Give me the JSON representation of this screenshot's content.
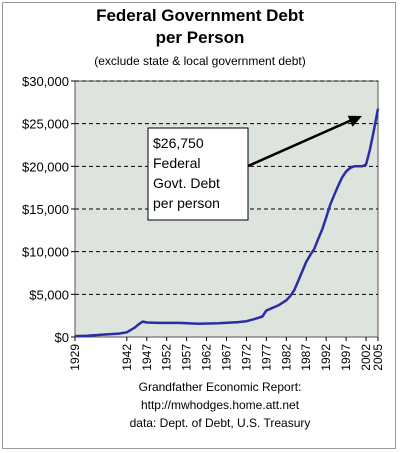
{
  "chart_data": {
    "type": "line",
    "title_lines": [
      "Federal Government Debt",
      "per Person"
    ],
    "subtitle": "(exclude state & local government debt)",
    "ylim": [
      0,
      30000
    ],
    "y_ticks": [
      0,
      5000,
      10000,
      15000,
      20000,
      25000,
      30000
    ],
    "y_tick_labels": [
      "$0",
      "$5,000",
      "$10,000",
      "$15,000",
      "$20,000",
      "$25,000",
      "$30,000"
    ],
    "xlim": [
      1929,
      2005
    ],
    "x_ticks": [
      1929,
      1942,
      1947,
      1952,
      1957,
      1962,
      1967,
      1972,
      1977,
      1982,
      1987,
      1992,
      1997,
      2002,
      2005
    ],
    "grid": "horizontal dashed",
    "series": [
      {
        "x": [
          1929,
          1932,
          1936,
          1940,
          1942,
          1944,
          1945,
          1946,
          1947,
          1950,
          1955,
          1960,
          1965,
          1970,
          1972,
          1974,
          1976,
          1977,
          1978,
          1980,
          1982,
          1983,
          1984,
          1985,
          1986,
          1987,
          1988,
          1989,
          1990,
          1991,
          1992,
          1993,
          1994,
          1995,
          1996,
          1997,
          1998,
          1999,
          2000,
          2001,
          2002,
          2003,
          2004,
          2005
        ],
        "y": [
          100,
          150,
          280,
          400,
          550,
          1100,
          1500,
          1800,
          1700,
          1650,
          1650,
          1550,
          1600,
          1750,
          1850,
          2100,
          2400,
          3100,
          3300,
          3700,
          4300,
          4800,
          5500,
          6600,
          7700,
          8800,
          9600,
          10300,
          11500,
          12600,
          14000,
          15500,
          16600,
          17700,
          18700,
          19400,
          19800,
          20000,
          20000,
          20000,
          20200,
          22000,
          24300,
          26750
        ]
      }
    ],
    "annotation": {
      "lines": [
        "$26,750",
        "Federal",
        "Govt. Debt",
        "per person"
      ],
      "arrow_target": {
        "x": 2001,
        "y": 25900
      }
    },
    "colors": {
      "plot_background": "#dde3dd",
      "line": "#2a2ea6",
      "grid": "#000000"
    }
  },
  "footer": {
    "line1": "Grandfather Economic Report:",
    "line2": "http://mwhodges.home.att.net",
    "line3": "data: Dept. of Debt, U.S. Treasury"
  }
}
